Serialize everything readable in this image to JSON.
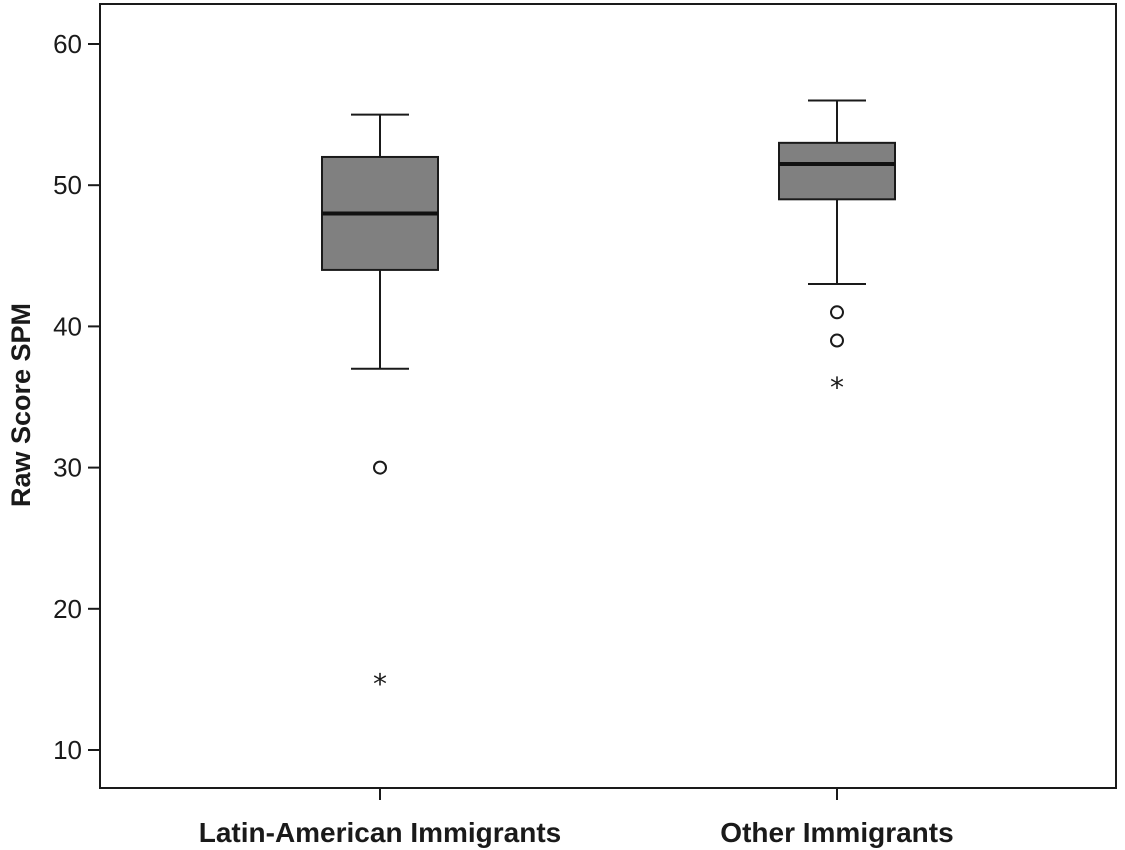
{
  "chart_data": {
    "type": "box",
    "title": "",
    "xlabel": "",
    "ylabel": "Raw Score SPM",
    "ylim": [
      7.5,
      63
    ],
    "yticks": [
      10,
      20,
      30,
      40,
      50,
      60
    ],
    "ytick_labels": [
      "10",
      "20",
      "30",
      "40",
      "50",
      "60"
    ],
    "grid": false,
    "box_color": "#808080",
    "categories": [
      "Latin-American Immigrants",
      "Other Immigrants"
    ],
    "boxes": [
      {
        "category": "Latin-American Immigrants",
        "whisker_low": 37,
        "q1": 44,
        "median": 48,
        "q3": 52,
        "whisker_high": 55,
        "outliers": [
          30
        ],
        "extremes": [
          15
        ]
      },
      {
        "category": "Other Immigrants",
        "whisker_low": 43,
        "q1": 49,
        "median": 51.5,
        "q3": 53,
        "whisker_high": 56,
        "outliers": [
          41,
          39
        ],
        "extremes": [
          36
        ]
      }
    ]
  }
}
